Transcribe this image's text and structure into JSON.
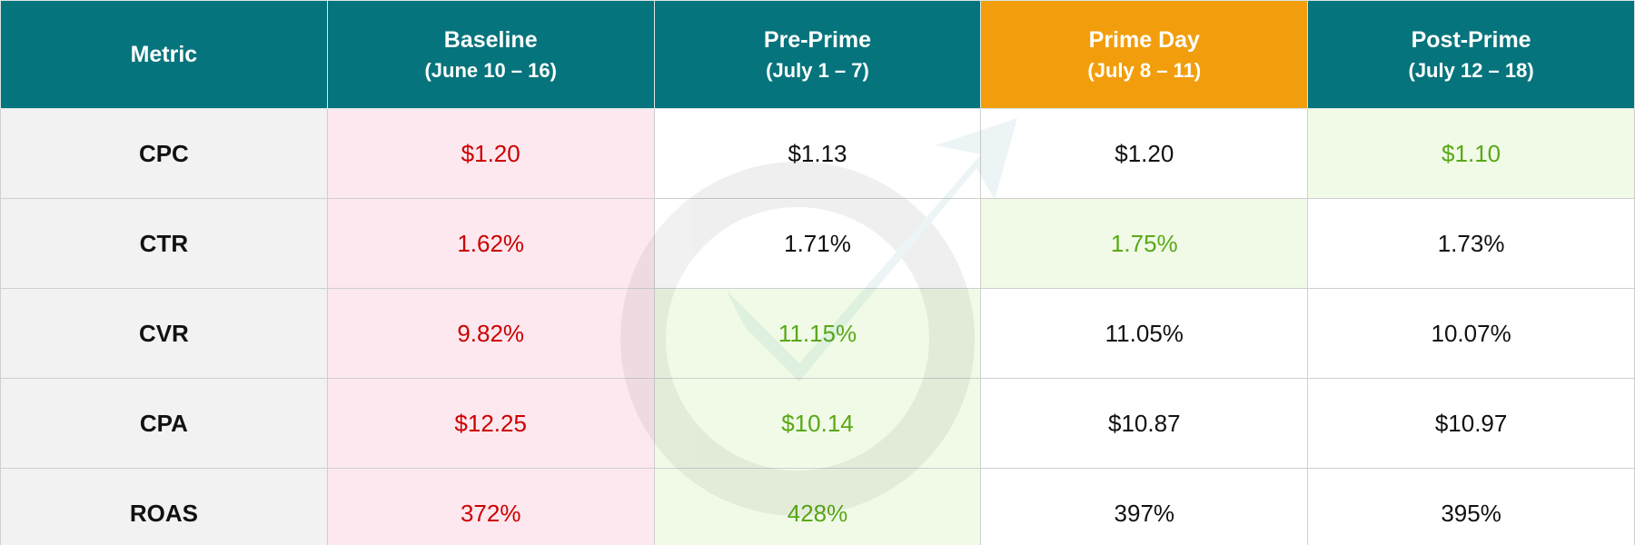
{
  "table": {
    "columns": [
      {
        "title": "Metric"
      },
      {
        "title": "Baseline",
        "subtitle": "(June 10 – 16)"
      },
      {
        "title": "Pre-Prime",
        "subtitle": "(July 1 – 7)"
      },
      {
        "title": "Prime Day",
        "subtitle": "(July 8 – 11)"
      },
      {
        "title": "Post-Prime",
        "subtitle": "(July 12 – 18)"
      }
    ],
    "rows": [
      [
        "CPC",
        "$1.20",
        "$1.13",
        "$1.20",
        "$1.10"
      ],
      [
        "CTR",
        "1.62%",
        "1.71%",
        "1.75%",
        "1.73%"
      ],
      [
        "CVR",
        "9.82%",
        "11.15%",
        "11.05%",
        "10.07%"
      ],
      [
        "CPA",
        "$12.25",
        "$10.14",
        "$10.87",
        "$10.97"
      ],
      [
        "ROAS",
        "372%",
        "428%",
        "397%",
        "395%"
      ]
    ]
  }
}
